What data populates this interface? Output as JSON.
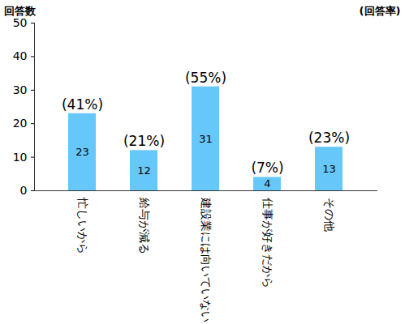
{
  "chart_data": {
    "type": "bar",
    "ylabel": "回答数",
    "y2label": "(回答率)",
    "categories": [
      "忙しいから",
      "給与が減る",
      "建設業には向いていない",
      "仕事が好きだから",
      "その他"
    ],
    "values": [
      23,
      12,
      31,
      4,
      13
    ],
    "rate_labels": [
      "(41%)",
      "(21%)",
      "(55%)",
      "(7%)",
      "(23%)"
    ],
    "color": "#66c8fa",
    "ylim": [
      0,
      50
    ],
    "yticks": [
      0,
      10,
      20,
      30,
      40,
      50
    ],
    "grid": false,
    "data_labels": true
  }
}
